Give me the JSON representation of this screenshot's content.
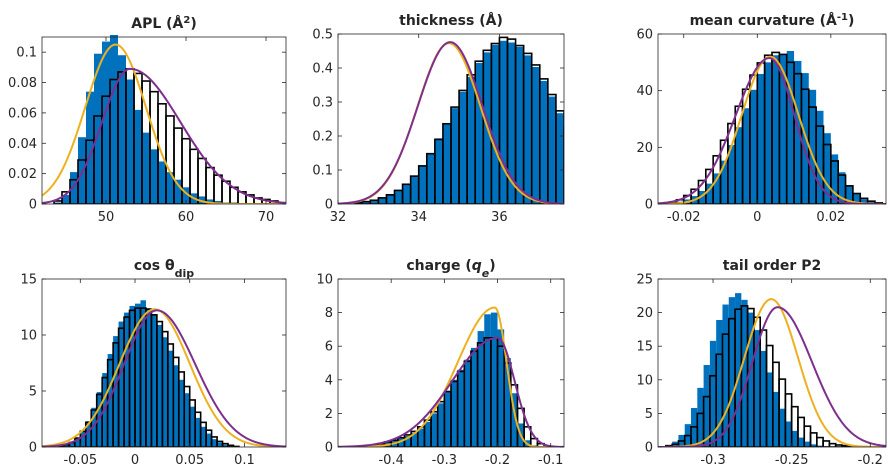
{
  "colors": {
    "bar_fill": "#0072BD",
    "outline": "#000000",
    "fit_gold": "#EDB120",
    "fit_purple": "#7E2F8E",
    "axis": "#262626"
  },
  "chart_data": [
    {
      "type": "bar",
      "title": "APL  (Å",
      "title_sup": "2",
      "title_tail": ")",
      "xlim": [
        42,
        72.5
      ],
      "ylim": [
        0,
        0.11
      ],
      "xticks": [
        50,
        60,
        70
      ],
      "xtick_labels": [
        "50",
        "60",
        "70"
      ],
      "yticks": [
        0,
        0.02,
        0.04,
        0.06,
        0.08,
        0.1
      ],
      "ytick_labels": [
        "0",
        "0.02",
        "0.04",
        "0.06",
        "0.08",
        "0.1"
      ],
      "series": [
        {
          "style": "filled-bars",
          "bin_start": 43.5,
          "bin_width": 1,
          "values": [
            0.001,
            0.006,
            0.021,
            0.044,
            0.074,
            0.099,
            0.107,
            0.112,
            0.098,
            0.082,
            0.062,
            0.047,
            0.036,
            0.028,
            0.021,
            0.016,
            0.011,
            0.007,
            0.005,
            0.003,
            0.002,
            0.001,
            0.001,
            0.0005
          ]
        },
        {
          "style": "outline-bars",
          "bin_start": 43.5,
          "bin_width": 1,
          "values": [
            0.002,
            0.008,
            0.016,
            0.029,
            0.042,
            0.058,
            0.071,
            0.082,
            0.087,
            0.089,
            0.086,
            0.081,
            0.074,
            0.066,
            0.058,
            0.05,
            0.043,
            0.036,
            0.03,
            0.024,
            0.019,
            0.015,
            0.011,
            0.008,
            0.006,
            0.004,
            0.003,
            0.002
          ]
        },
        {
          "style": "curve",
          "color_key": "fit_gold",
          "kind": "gauss",
          "params": [
            0.105,
            51.2,
            3.8
          ]
        },
        {
          "style": "curve",
          "color_key": "fit_purple",
          "kind": "skew",
          "params": [
            0.089,
            53.0,
            3.5,
            6.3
          ]
        }
      ]
    },
    {
      "type": "bar",
      "title": "thickness (Å)",
      "xlim": [
        32,
        37.6
      ],
      "ylim": [
        0,
        0.5
      ],
      "xticks": [
        32,
        34,
        36
      ],
      "xtick_labels": [
        "32",
        "34",
        "36"
      ],
      "yticks": [
        0,
        0.1,
        0.2,
        0.3,
        0.4,
        0.5
      ],
      "ytick_labels": [
        "0",
        "0.1",
        "0.2",
        "0.3",
        "0.4",
        "0.5"
      ],
      "series": [
        {
          "style": "filled-bars",
          "bin_start": 32.4,
          "bin_width": 0.2,
          "values": [
            0.005,
            0.008,
            0.012,
            0.018,
            0.027,
            0.039,
            0.058,
            0.083,
            0.114,
            0.15,
            0.193,
            0.238,
            0.282,
            0.33,
            0.374,
            0.415,
            0.446,
            0.468,
            0.48,
            0.475,
            0.462,
            0.437,
            0.403,
            0.362,
            0.316,
            0.267,
            0.22,
            0.176,
            0.135,
            0.101,
            0.073,
            0.051,
            0.034,
            0.022,
            0.013,
            0.008
          ]
        },
        {
          "style": "outline-bars",
          "bin_start": 32.4,
          "bin_width": 0.2,
          "values": [
            0.004,
            0.007,
            0.011,
            0.018,
            0.027,
            0.04,
            0.058,
            0.082,
            0.112,
            0.148,
            0.19,
            0.236,
            0.285,
            0.334,
            0.38,
            0.42,
            0.452,
            0.472,
            0.49,
            0.485,
            0.466,
            0.443,
            0.409,
            0.368,
            0.322,
            0.274,
            0.226,
            0.181,
            0.14,
            0.105,
            0.076,
            0.053,
            0.036,
            0.023,
            0.014,
            0.008
          ]
        },
        {
          "style": "curve",
          "color_key": "fit_gold",
          "kind": "gauss",
          "params": [
            0.473,
            34.75,
            0.78
          ]
        },
        {
          "style": "curve",
          "color_key": "fit_purple",
          "kind": "gauss",
          "params": [
            0.476,
            34.78,
            0.8
          ]
        }
      ]
    },
    {
      "type": "bar",
      "title": "mean curvature (Å",
      "title_sup": "-1",
      "title_tail": ")",
      "xlim": [
        -0.027,
        0.035
      ],
      "ylim": [
        0,
        60
      ],
      "xticks": [
        -0.02,
        0,
        0.02
      ],
      "xtick_labels": [
        "-0.02",
        "0",
        "0.02"
      ],
      "yticks": [
        0,
        20,
        40,
        60
      ],
      "ytick_labels": [
        "0",
        "20",
        "40",
        "60"
      ],
      "series": [
        {
          "style": "filled-bars",
          "bin_start": -0.024,
          "bin_width": 0.002,
          "values": [
            0.3,
            0.8,
            1.6,
            2.8,
            4.6,
            7.2,
            10.8,
            15.3,
            20.8,
            27.1,
            33.8,
            40.3,
            45.9,
            50.0,
            52.5,
            52.8,
            54.0,
            50.5,
            46.2,
            40.3,
            32.9,
            25.0,
            17.5,
            11.2,
            6.6,
            3.5,
            1.7,
            0.8,
            0.3
          ]
        },
        {
          "style": "outline-bars",
          "bin_start": -0.024,
          "bin_width": 0.002,
          "values": [
            0.6,
            1.5,
            3.0,
            5.2,
            8.3,
            12.2,
            17.0,
            22.5,
            28.4,
            34.5,
            40.5,
            45.5,
            49.8,
            52.5,
            53.5,
            52.8,
            50.0,
            46.0,
            40.5,
            34.2,
            27.5,
            21.0,
            15.2,
            10.2,
            6.4,
            3.7,
            2.0,
            1.0,
            0.4
          ]
        },
        {
          "style": "curve",
          "color_key": "fit_gold",
          "kind": "gauss",
          "params": [
            52.0,
            0.0035,
            0.0077
          ]
        },
        {
          "style": "curve",
          "color_key": "fit_purple",
          "kind": "skew",
          "params": [
            51.5,
            0.0033,
            0.0092,
            0.0068
          ]
        }
      ]
    },
    {
      "type": "bar",
      "title": "cos θ",
      "title_sub": "dip",
      "xlim": [
        -0.085,
        0.138
      ],
      "ylim": [
        0,
        15
      ],
      "xticks": [
        -0.05,
        0,
        0.05,
        0.1
      ],
      "xtick_labels": [
        "-0.05",
        "0",
        "0.05",
        "0.1"
      ],
      "yticks": [
        0,
        5,
        10,
        15
      ],
      "ytick_labels": [
        "0",
        "5",
        "10",
        "15"
      ],
      "series": [
        {
          "style": "filled-bars",
          "bin_start": -0.07,
          "bin_width": 0.005,
          "values": [
            0.1,
            0.2,
            0.4,
            0.8,
            1.4,
            2.3,
            3.5,
            4.9,
            6.6,
            8.3,
            9.9,
            11.2,
            12.0,
            12.6,
            12.8,
            13.1,
            12.4,
            11.8,
            10.9,
            9.8,
            8.6,
            7.3,
            6.0,
            4.8,
            3.6,
            2.6,
            1.8,
            1.2,
            0.7,
            0.4,
            0.2,
            0.1,
            0.05
          ]
        },
        {
          "style": "outline-bars",
          "bin_start": -0.07,
          "bin_width": 0.005,
          "values": [
            0.1,
            0.2,
            0.4,
            0.8,
            1.4,
            2.2,
            3.3,
            4.7,
            6.2,
            7.8,
            9.3,
            10.6,
            11.6,
            12.2,
            12.4,
            12.4,
            12.3,
            11.8,
            11.2,
            10.3,
            9.2,
            8.0,
            6.7,
            5.4,
            4.2,
            3.1,
            2.2,
            1.5,
            0.9,
            0.5,
            0.3,
            0.15,
            0.05
          ]
        },
        {
          "style": "curve",
          "color_key": "fit_gold",
          "kind": "gauss",
          "params": [
            12.3,
            0.018,
            0.032
          ]
        },
        {
          "style": "curve",
          "color_key": "fit_purple",
          "kind": "skew",
          "params": [
            12.2,
            0.02,
            0.03,
            0.035
          ]
        }
      ]
    },
    {
      "type": "bar",
      "title": "charge (",
      "title_q": "q",
      "title_q_sub": "e",
      "title_tail": ")",
      "xlim": [
        -0.5,
        -0.075
      ],
      "ylim": [
        0,
        10
      ],
      "xticks": [
        -0.4,
        -0.3,
        -0.2,
        -0.1
      ],
      "xtick_labels": [
        "-0.4",
        "-0.3",
        "-0.2",
        "-0.1"
      ],
      "yticks": [
        0,
        2,
        4,
        6,
        8,
        10
      ],
      "ytick_labels": [
        "0",
        "2",
        "4",
        "6",
        "8",
        "10"
      ],
      "series": [
        {
          "style": "filled-bars",
          "bin_start": -0.45,
          "bin_width": 0.0125,
          "values": [
            0.05,
            0.1,
            0.2,
            0.28,
            0.38,
            0.5,
            0.65,
            0.85,
            1.1,
            1.5,
            2.0,
            2.6,
            3.3,
            4.0,
            4.6,
            5.2,
            5.9,
            6.9,
            7.9,
            8.0,
            7.0,
            5.3,
            3.2,
            1.4,
            0.4,
            0.1,
            0.02
          ]
        },
        {
          "style": "outline-bars",
          "bin_start": -0.45,
          "bin_width": 0.0125,
          "values": [
            0.05,
            0.1,
            0.2,
            0.3,
            0.4,
            0.55,
            0.72,
            0.93,
            1.2,
            1.6,
            2.1,
            2.7,
            3.3,
            3.9,
            4.5,
            5.1,
            5.7,
            6.2,
            6.5,
            6.5,
            6.0,
            5.0,
            3.7,
            2.3,
            1.2,
            0.5,
            0.2
          ]
        },
        {
          "style": "curve",
          "color_key": "fit_gold",
          "kind": "skew",
          "params": [
            8.3,
            -0.205,
            0.07,
            0.022
          ]
        },
        {
          "style": "curve",
          "color_key": "fit_purple",
          "kind": "skew",
          "params": [
            6.5,
            -0.2,
            0.085,
            0.032
          ]
        }
      ]
    },
    {
      "type": "bar",
      "title": "tail order P2",
      "xlim": [
        -0.335,
        -0.19
      ],
      "ylim": [
        0,
        25
      ],
      "xticks": [
        -0.3,
        -0.25,
        -0.2
      ],
      "xtick_labels": [
        "-0.3",
        "-0.25",
        "-0.2"
      ],
      "yticks": [
        0,
        5,
        10,
        15,
        20,
        25
      ],
      "ytick_labels": [
        "0",
        "5",
        "10",
        "15",
        "20",
        "25"
      ],
      "series": [
        {
          "style": "filled-bars",
          "bin_start": -0.33,
          "bin_width": 0.004,
          "values": [
            0.3,
            0.8,
            1.8,
            3.4,
            5.8,
            8.8,
            12.2,
            15.8,
            18.9,
            21.2,
            22.3,
            22.9,
            21.9,
            20.0,
            17.4,
            14.3,
            11.1,
            8.2,
            5.7,
            3.8,
            2.4,
            1.4,
            0.8,
            0.4,
            0.2,
            0.1,
            0.05,
            0.02,
            0.01,
            0.01,
            0.01,
            0.01,
            0.01,
            0.01,
            0.01,
            0.01
          ]
        },
        {
          "style": "outline-bars",
          "bin_start": -0.33,
          "bin_width": 0.004,
          "values": [
            0.2,
            0.4,
            0.9,
            1.7,
            3.0,
            5.0,
            7.5,
            10.6,
            13.8,
            16.8,
            19.1,
            20.5,
            21.0,
            20.6,
            19.3,
            17.4,
            15.1,
            12.6,
            10.1,
            7.9,
            6.0,
            4.4,
            3.1,
            2.1,
            1.4,
            0.9,
            0.5,
            0.3,
            0.2,
            0.1,
            0.1,
            0.05,
            0.03,
            0.02,
            0.01,
            0.01
          ]
        },
        {
          "style": "curve",
          "color_key": "fit_gold",
          "kind": "gauss",
          "params": [
            22.0,
            -0.263,
            0.017
          ]
        },
        {
          "style": "curve",
          "color_key": "fit_purple",
          "kind": "skew",
          "params": [
            20.8,
            -0.259,
            0.016,
            0.022
          ]
        }
      ]
    }
  ]
}
